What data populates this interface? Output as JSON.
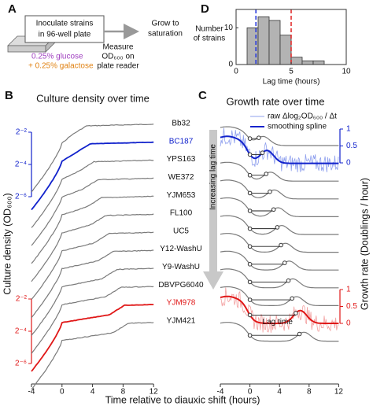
{
  "panel_labels": [
    "A",
    "B",
    "C",
    "D"
  ],
  "panel_a": {
    "box_line1": "Inoculate strains",
    "box_line2": "in 96-well plate",
    "glucose": "0.25% glucose",
    "galactose": "+ 0.25% galactose",
    "measure_line1": "Measure",
    "measure_line2": "OD₆₀₀ on",
    "measure_line3": "plate reader",
    "grow_line1": "Grow to",
    "grow_line2": "saturation"
  },
  "panel_b": {
    "title": "Culture density over time",
    "ylabel": "Culture density (OD₆₀₀)",
    "xlabel": "Time relative to diauxic shift (hours)",
    "xticks": [
      -4,
      0,
      4,
      8,
      12
    ],
    "yticks_blue": [
      "2⁻²",
      "2⁻⁴",
      "2⁻⁶"
    ],
    "yticks_red": [
      "2⁻²",
      "2⁻⁴",
      "2⁻⁶"
    ],
    "strains": [
      "Bb32",
      "BC187",
      "YPS163",
      "WE372",
      "YJM653",
      "FL100",
      "UC5",
      "Y12-WashU",
      "Y9-WashU",
      "DBVPG6040",
      "YJM978",
      "YJM421"
    ]
  },
  "panel_c": {
    "title": "Growth rate over time",
    "legend_raw": "raw Δlog₂OD₆₀₀ / Δt",
    "legend_spline": "smoothing spline",
    "arrow_label": "Increasing lag time",
    "annotation": "Lag time",
    "ylabel": "Growth rate (Doublings / hour)",
    "xticks": [
      -4,
      0,
      4,
      8,
      12
    ],
    "yticks_blue": [
      1,
      0.5,
      0
    ],
    "yticks_red": [
      1,
      0.5,
      0
    ]
  },
  "panel_d": {
    "chart_data": {
      "type": "histogram",
      "xlabel": "Lag time (hours)",
      "ylabel_line1": "Number",
      "ylabel_line2": "of strains",
      "bins": [
        0,
        1,
        2,
        3,
        4,
        5,
        6,
        7,
        8,
        9,
        10
      ],
      "counts": [
        0,
        10,
        13,
        12,
        8,
        2,
        1,
        1,
        0,
        0
      ],
      "color": "#b3b3b3",
      "xlim": [
        0,
        10
      ],
      "ylim": [
        0,
        15
      ],
      "xticks": [
        0,
        5,
        10
      ],
      "yticks": [
        0,
        10
      ],
      "reference_lines": [
        {
          "value": 1.8,
          "color": "#2233dd"
        },
        {
          "value": 5,
          "color": "#e02020"
        }
      ]
    }
  }
}
